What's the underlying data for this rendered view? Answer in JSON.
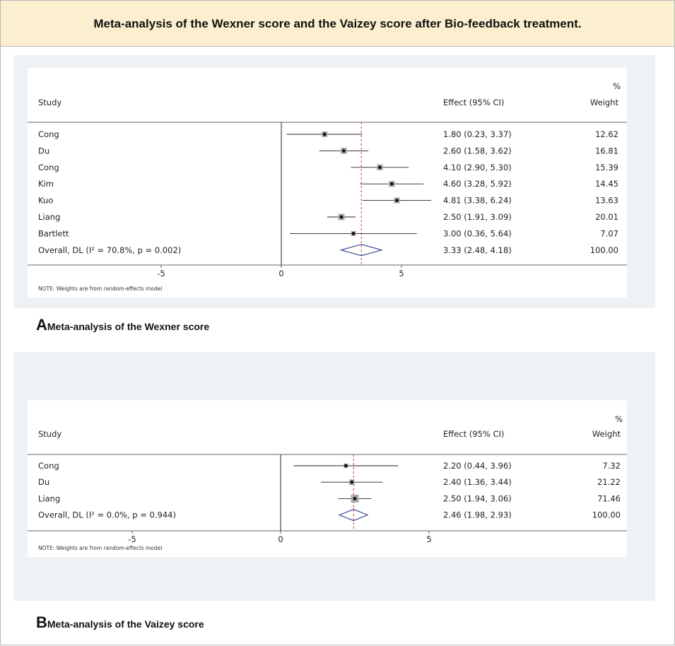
{
  "header": {
    "title": "Meta-analysis of the Wexner score and the Vaizey score after Bio-feedback treatment."
  },
  "chart_data": [
    {
      "type": "forest",
      "caption_letter": "A",
      "caption_text": "Meta-analysis of the Wexner score",
      "col_study": "Study",
      "col_effect": "Effect (95% CI)",
      "col_weight_pct": "%",
      "col_weight": "Weight",
      "xlim": [
        -9.5,
        9.5
      ],
      "ticks": [
        {
          "v": -5,
          "label": "-5"
        },
        {
          "v": 0,
          "label": "0"
        },
        {
          "v": 5,
          "label": "5"
        }
      ],
      "studies": [
        {
          "name": "Cong",
          "effect": 1.8,
          "lo": 0.23,
          "hi": 3.37,
          "effect_text": "1.80 (0.23, 3.37)",
          "weight": "12.62"
        },
        {
          "name": "Du",
          "effect": 2.6,
          "lo": 1.58,
          "hi": 3.62,
          "effect_text": "2.60 (1.58, 3.62)",
          "weight": "16.81"
        },
        {
          "name": "Cong",
          "effect": 4.1,
          "lo": 2.9,
          "hi": 5.3,
          "effect_text": "4.10 (2.90, 5.30)",
          "weight": "15.39"
        },
        {
          "name": "Kim",
          "effect": 4.6,
          "lo": 3.28,
          "hi": 5.92,
          "effect_text": "4.60 (3.28, 5.92)",
          "weight": "14.45"
        },
        {
          "name": "Kuo",
          "effect": 4.81,
          "lo": 3.38,
          "hi": 6.24,
          "effect_text": "4.81 (3.38, 6.24)",
          "weight": "13.63"
        },
        {
          "name": "Liang",
          "effect": 2.5,
          "lo": 1.91,
          "hi": 3.09,
          "effect_text": "2.50 (1.91, 3.09)",
          "weight": "20.01"
        },
        {
          "name": "Bartlett",
          "effect": 3.0,
          "lo": 0.36,
          "hi": 5.64,
          "effect_text": "3.00 (0.36, 5.64)",
          "weight": "7.07"
        }
      ],
      "overall": {
        "label": "Overall, DL (I² = 70.8%, p = 0.002)",
        "effect": 3.33,
        "lo": 2.48,
        "hi": 4.18,
        "effect_text": "3.33 (2.48, 4.18)",
        "weight": "100.00"
      },
      "note": "NOTE: Weights are from random-effects model"
    },
    {
      "type": "forest",
      "caption_letter": "B",
      "caption_text": "Meta-analysis of the Vaizey score",
      "col_study": "Study",
      "col_effect": "Effect (95% CI)",
      "col_weight_pct": "%",
      "col_weight": "Weight",
      "xlim": [
        -9.5,
        9.5
      ],
      "ticks": [
        {
          "v": -5,
          "label": "-5"
        },
        {
          "v": 0,
          "label": "0"
        },
        {
          "v": 5,
          "label": "5"
        }
      ],
      "studies": [
        {
          "name": "Cong",
          "effect": 2.2,
          "lo": 0.44,
          "hi": 3.96,
          "effect_text": "2.20 (0.44, 3.96)",
          "weight": "7.32"
        },
        {
          "name": "Du",
          "effect": 2.4,
          "lo": 1.36,
          "hi": 3.44,
          "effect_text": "2.40 (1.36, 3.44)",
          "weight": "21.22"
        },
        {
          "name": "Liang",
          "effect": 2.5,
          "lo": 1.94,
          "hi": 3.06,
          "effect_text": "2.50 (1.94, 3.06)",
          "weight": "71.46"
        }
      ],
      "overall": {
        "label": "Overall, DL (I² = 0.0%, p = 0.944)",
        "effect": 2.46,
        "lo": 1.98,
        "hi": 2.93,
        "effect_text": "2.46 (1.98, 2.93)",
        "weight": "100.00"
      },
      "note": "NOTE: Weights are from random-effects model"
    }
  ]
}
